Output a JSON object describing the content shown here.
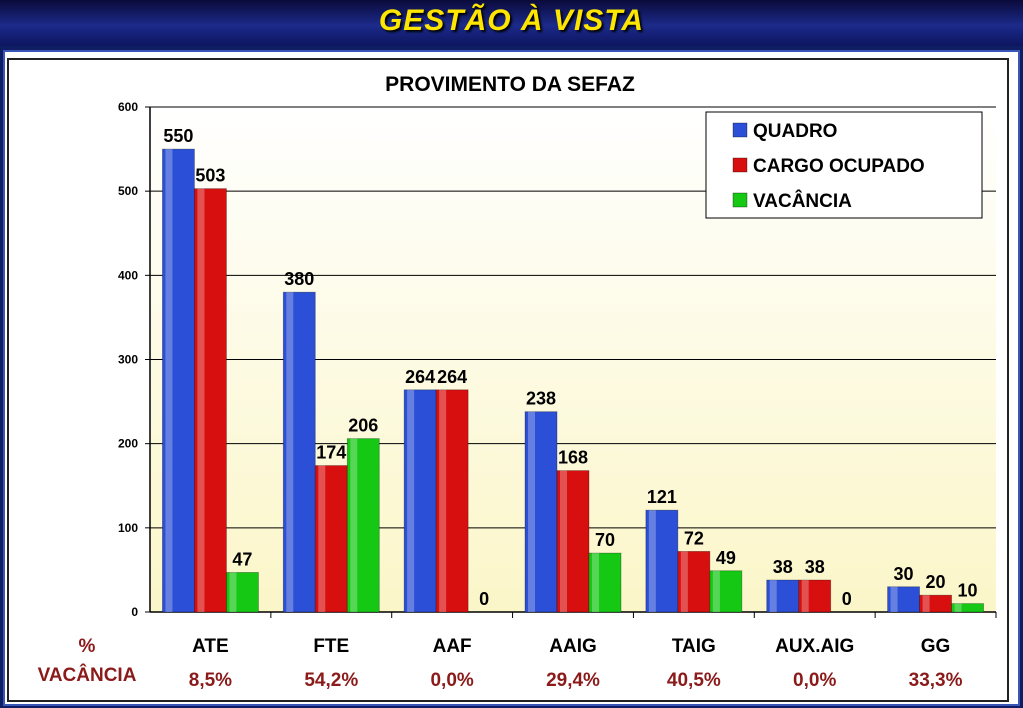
{
  "banner": {
    "title": "GESTÃO À VISTA"
  },
  "chart_data": {
    "type": "bar",
    "title": "PROVIMENTO DA SEFAZ",
    "categories": [
      "ATE",
      "FTE",
      "AAF",
      "AAIG",
      "TAIG",
      "AUX.AIG",
      "GG"
    ],
    "series": [
      {
        "name": "QUADRO",
        "values": [
          550,
          380,
          264,
          238,
          121,
          38,
          30
        ],
        "color": "#2b4fd6"
      },
      {
        "name": "CARGO OCUPADO",
        "values": [
          503,
          174,
          264,
          168,
          72,
          38,
          20
        ],
        "color": "#d80f0f"
      },
      {
        "name": "VACÂNCIA",
        "values": [
          47,
          206,
          0,
          70,
          49,
          0,
          10
        ],
        "color": "#14c814"
      }
    ],
    "data_labels": [
      [
        "550",
        "503",
        "47"
      ],
      [
        "380",
        "174",
        "206"
      ],
      [
        "264",
        "264",
        "0"
      ],
      [
        "238",
        "168",
        "70"
      ],
      [
        "121",
        "72",
        "49"
      ],
      [
        "38",
        "38",
        "0"
      ],
      [
        "30",
        "20",
        "10"
      ]
    ],
    "ylim": [
      0,
      600
    ],
    "yticks": [
      "0",
      "100",
      "200",
      "300",
      "400",
      "500",
      "600"
    ],
    "grid": true,
    "legend": "top-right",
    "vacancy_row_label": [
      "%",
      "VACÂNCIA"
    ],
    "vacancy_percent": [
      "8,5%",
      "54,2%",
      "0,0%",
      "29,4%",
      "40,5%",
      "0,0%",
      "33,3%"
    ]
  }
}
